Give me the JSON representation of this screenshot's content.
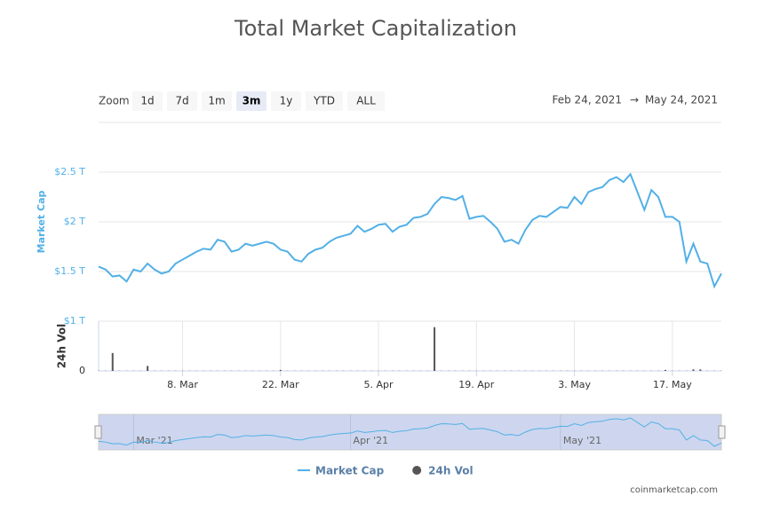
{
  "chart_data": {
    "type": "line",
    "title": "Total Market Capitalization",
    "zoom": {
      "label": "Zoom",
      "buttons": [
        "1d",
        "7d",
        "1m",
        "3m",
        "1y",
        "YTD",
        "ALL"
      ],
      "selected": 3
    },
    "range": {
      "from": "Feb 24, 2021",
      "arrow": "→",
      "to": "May 24, 2021"
    },
    "ylabel": "Market Cap",
    "y2label": "24h Vol",
    "x": [
      "2021-02-24",
      "2021-02-25",
      "2021-02-26",
      "2021-02-27",
      "2021-02-28",
      "2021-03-01",
      "2021-03-02",
      "2021-03-03",
      "2021-03-04",
      "2021-03-05",
      "2021-03-06",
      "2021-03-07",
      "2021-03-08",
      "2021-03-09",
      "2021-03-10",
      "2021-03-11",
      "2021-03-12",
      "2021-03-13",
      "2021-03-14",
      "2021-03-15",
      "2021-03-16",
      "2021-03-17",
      "2021-03-18",
      "2021-03-19",
      "2021-03-20",
      "2021-03-21",
      "2021-03-22",
      "2021-03-23",
      "2021-03-24",
      "2021-03-25",
      "2021-03-26",
      "2021-03-27",
      "2021-03-28",
      "2021-03-29",
      "2021-03-30",
      "2021-03-31",
      "2021-04-01",
      "2021-04-02",
      "2021-04-03",
      "2021-04-04",
      "2021-04-05",
      "2021-04-06",
      "2021-04-07",
      "2021-04-08",
      "2021-04-09",
      "2021-04-10",
      "2021-04-11",
      "2021-04-12",
      "2021-04-13",
      "2021-04-14",
      "2021-04-15",
      "2021-04-16",
      "2021-04-17",
      "2021-04-18",
      "2021-04-19",
      "2021-04-20",
      "2021-04-21",
      "2021-04-22",
      "2021-04-23",
      "2021-04-24",
      "2021-04-25",
      "2021-04-26",
      "2021-04-27",
      "2021-04-28",
      "2021-04-29",
      "2021-04-30",
      "2021-05-01",
      "2021-05-02",
      "2021-05-03",
      "2021-05-04",
      "2021-05-05",
      "2021-05-06",
      "2021-05-07",
      "2021-05-08",
      "2021-05-09",
      "2021-05-10",
      "2021-05-11",
      "2021-05-12",
      "2021-05-13",
      "2021-05-14",
      "2021-05-15",
      "2021-05-16",
      "2021-05-17",
      "2021-05-18",
      "2021-05-19",
      "2021-05-20",
      "2021-05-21",
      "2021-05-22",
      "2021-05-23",
      "2021-05-24"
    ],
    "series": [
      {
        "name": "Market Cap",
        "color": "#52b0e6",
        "values": [
          1.55,
          1.52,
          1.45,
          1.46,
          1.4,
          1.52,
          1.5,
          1.58,
          1.52,
          1.48,
          1.5,
          1.58,
          1.62,
          1.66,
          1.7,
          1.73,
          1.72,
          1.82,
          1.8,
          1.7,
          1.72,
          1.78,
          1.76,
          1.78,
          1.8,
          1.78,
          1.72,
          1.7,
          1.62,
          1.6,
          1.68,
          1.72,
          1.74,
          1.8,
          1.84,
          1.86,
          1.88,
          1.96,
          1.9,
          1.93,
          1.97,
          1.98,
          1.9,
          1.95,
          1.97,
          2.04,
          2.05,
          2.08,
          2.18,
          2.25,
          2.24,
          2.22,
          2.26,
          2.03,
          2.05,
          2.06,
          2.0,
          1.93,
          1.8,
          1.82,
          1.78,
          1.92,
          2.02,
          2.06,
          2.05,
          2.1,
          2.15,
          2.14,
          2.25,
          2.18,
          2.3,
          2.33,
          2.35,
          2.42,
          2.45,
          2.4,
          2.48,
          2.3,
          2.12,
          2.32,
          2.25,
          2.05,
          2.05,
          2.0,
          1.6,
          1.78,
          1.6,
          1.58,
          1.35,
          1.48
        ]
      },
      {
        "name": "24h Vol",
        "color": "#555555",
        "type": "column",
        "axis": "y2",
        "values": [
          0.004,
          0.004,
          0.36,
          0.004,
          0.004,
          0.004,
          0.004,
          0.1,
          0.004,
          0.004,
          0.004,
          0.004,
          0.004,
          0.004,
          0.004,
          0.004,
          0.004,
          0.004,
          0.004,
          0.004,
          0.004,
          0.004,
          0.004,
          0.004,
          0.004,
          0.004,
          0.02,
          0.004,
          0.004,
          0.004,
          0.004,
          0.004,
          0.004,
          0.004,
          0.004,
          0.004,
          0.004,
          0.004,
          0.004,
          0.004,
          0.004,
          0.004,
          0.004,
          0.004,
          0.004,
          0.004,
          0.004,
          0.004,
          0.88,
          0.004,
          0.004,
          0.004,
          0.004,
          0.004,
          0.004,
          0.004,
          0.004,
          0.004,
          0.004,
          0.004,
          0.004,
          0.004,
          0.004,
          0.004,
          0.004,
          0.004,
          0.004,
          0.004,
          0.004,
          0.004,
          0.004,
          0.004,
          0.004,
          0.004,
          0.004,
          0.004,
          0.004,
          0.004,
          0.004,
          0.004,
          0.004,
          0.02,
          0.004,
          0.004,
          0.004,
          0.03,
          0.03,
          0.004,
          0.004,
          0.004
        ]
      }
    ],
    "xlim": [
      "2021-02-24",
      "2021-05-24"
    ],
    "xticks": [
      {
        "value": "2021-03-08",
        "label": "8. Mar"
      },
      {
        "value": "2021-03-22",
        "label": "22. Mar"
      },
      {
        "value": "2021-04-05",
        "label": "5. Apr"
      },
      {
        "value": "2021-04-19",
        "label": "19. Apr"
      },
      {
        "value": "2021-05-03",
        "label": "3. May"
      },
      {
        "value": "2021-05-17",
        "label": "17. May"
      }
    ],
    "ylim": [
      1,
      3
    ],
    "yticks": [
      {
        "value": 1,
        "label": "$1 T"
      },
      {
        "value": 1.5,
        "label": "$1.5 T"
      },
      {
        "value": 2,
        "label": "$2 T"
      },
      {
        "value": 2.5,
        "label": "$2.5 T"
      }
    ],
    "y2lim": [
      0,
      1
    ],
    "y2ticks": [
      0
    ],
    "navigator_ticks": [
      {
        "value": "2021-03-01",
        "label": "Mar '21"
      },
      {
        "value": "2021-04-01",
        "label": "Apr '21"
      },
      {
        "value": "2021-05-01",
        "label": "May '21"
      }
    ],
    "grid": true,
    "legend": "bottom",
    "credit": "coinmarketcap.com"
  }
}
